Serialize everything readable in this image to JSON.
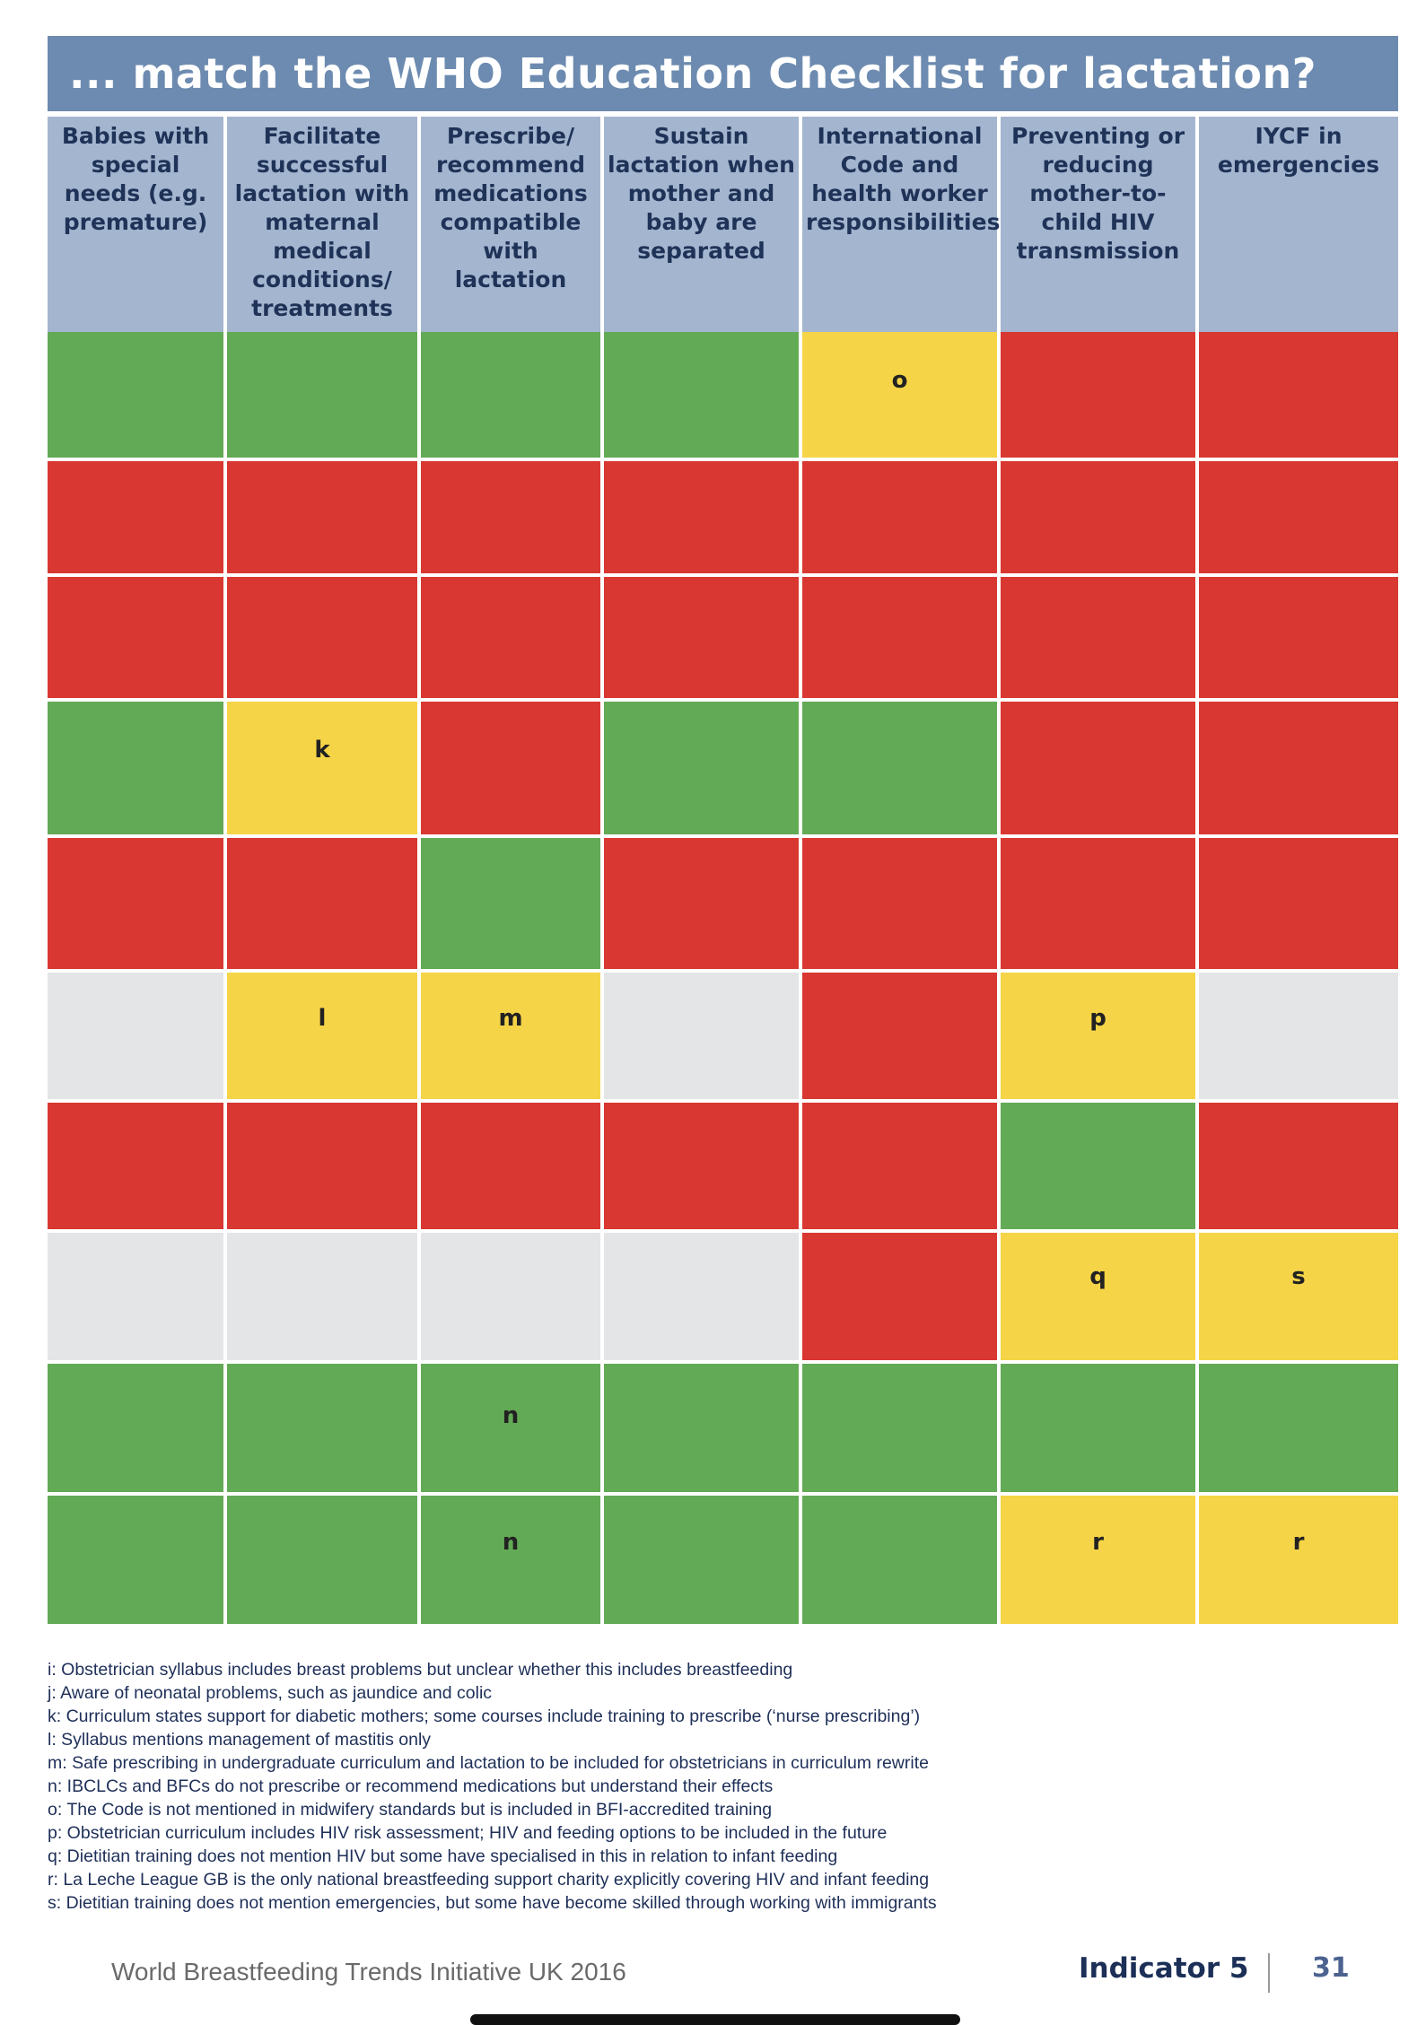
{
  "title": "... match the WHO Education Checklist for lactation?",
  "columns": [
    "Babies with special needs (e.g. premature)",
    "Facilitate successful lactation with maternal medical conditions/ treatments",
    "Prescribe/ recommend medications compatible with lactation",
    "Sustain lactation when mother and baby are separated",
    "International Code and health worker responsibilities",
    "Preventing or reducing mother-to-child HIV transmission",
    "IYCF in emergencies"
  ],
  "colors": {
    "green": "#62aa55",
    "red": "#d83831",
    "yellow": "#f6d447",
    "grey": "#e4e5e7",
    "header": "#a4b5cf",
    "title_bar": "#6d8bb0"
  },
  "rows": [
    [
      {
        "status": "green",
        "note": ""
      },
      {
        "status": "green",
        "note": ""
      },
      {
        "status": "green",
        "note": ""
      },
      {
        "status": "green",
        "note": ""
      },
      {
        "status": "yellow",
        "note": "o"
      },
      {
        "status": "red",
        "note": ""
      },
      {
        "status": "red",
        "note": ""
      }
    ],
    [
      {
        "status": "red",
        "note": ""
      },
      {
        "status": "red",
        "note": ""
      },
      {
        "status": "red",
        "note": ""
      },
      {
        "status": "red",
        "note": ""
      },
      {
        "status": "red",
        "note": ""
      },
      {
        "status": "red",
        "note": ""
      },
      {
        "status": "red",
        "note": ""
      }
    ],
    [
      {
        "status": "red",
        "note": ""
      },
      {
        "status": "red",
        "note": ""
      },
      {
        "status": "red",
        "note": ""
      },
      {
        "status": "red",
        "note": ""
      },
      {
        "status": "red",
        "note": ""
      },
      {
        "status": "red",
        "note": ""
      },
      {
        "status": "red",
        "note": ""
      }
    ],
    [
      {
        "status": "green",
        "note": ""
      },
      {
        "status": "yellow",
        "note": "k"
      },
      {
        "status": "red",
        "note": ""
      },
      {
        "status": "green",
        "note": ""
      },
      {
        "status": "green",
        "note": ""
      },
      {
        "status": "red",
        "note": ""
      },
      {
        "status": "red",
        "note": ""
      }
    ],
    [
      {
        "status": "red",
        "note": ""
      },
      {
        "status": "red",
        "note": ""
      },
      {
        "status": "green",
        "note": ""
      },
      {
        "status": "red",
        "note": ""
      },
      {
        "status": "red",
        "note": ""
      },
      {
        "status": "red",
        "note": ""
      },
      {
        "status": "red",
        "note": ""
      }
    ],
    [
      {
        "status": "grey",
        "note": ""
      },
      {
        "status": "yellow",
        "note": "l"
      },
      {
        "status": "yellow",
        "note": "m"
      },
      {
        "status": "grey",
        "note": ""
      },
      {
        "status": "red",
        "note": ""
      },
      {
        "status": "yellow",
        "note": "p"
      },
      {
        "status": "grey",
        "note": ""
      }
    ],
    [
      {
        "status": "red",
        "note": ""
      },
      {
        "status": "red",
        "note": ""
      },
      {
        "status": "red",
        "note": ""
      },
      {
        "status": "red",
        "note": ""
      },
      {
        "status": "red",
        "note": ""
      },
      {
        "status": "green",
        "note": ""
      },
      {
        "status": "red",
        "note": ""
      }
    ],
    [
      {
        "status": "grey",
        "note": ""
      },
      {
        "status": "grey",
        "note": ""
      },
      {
        "status": "grey",
        "note": ""
      },
      {
        "status": "grey",
        "note": ""
      },
      {
        "status": "red",
        "note": ""
      },
      {
        "status": "yellow",
        "note": "q"
      },
      {
        "status": "yellow",
        "note": "s"
      }
    ],
    [
      {
        "status": "green",
        "note": ""
      },
      {
        "status": "green",
        "note": ""
      },
      {
        "status": "green",
        "note": "n"
      },
      {
        "status": "green",
        "note": ""
      },
      {
        "status": "green",
        "note": ""
      },
      {
        "status": "green",
        "note": ""
      },
      {
        "status": "green",
        "note": ""
      }
    ],
    [
      {
        "status": "green",
        "note": ""
      },
      {
        "status": "green",
        "note": ""
      },
      {
        "status": "green",
        "note": "n"
      },
      {
        "status": "green",
        "note": ""
      },
      {
        "status": "green",
        "note": ""
      },
      {
        "status": "yellow",
        "note": "r"
      },
      {
        "status": "yellow",
        "note": "r"
      }
    ]
  ],
  "footnotes": [
    "i:  Obstetrician syllabus includes breast problems but unclear whether this includes breastfeeding",
    "j:  Aware of neonatal problems, such as jaundice and colic",
    "k:  Curriculum states support for diabetic mothers; some courses include training to prescribe (‘nurse prescribing’)",
    "l:  Syllabus mentions management of mastitis only",
    "m:  Safe prescribing in undergraduate curriculum and lactation to be included for obstetricians in curriculum rewrite",
    "n:  IBCLCs and BFCs do not prescribe or recommend medications but understand their effects",
    "o:  The Code is not mentioned in midwifery standards but is included in BFI-accredited training",
    "p:  Obstetrician curriculum includes HIV risk assessment; HIV and feeding options to be included in the future",
    "q:  Dietitian training does not mention HIV but some have specialised in this in relation to infant feeding",
    "r:  La Leche League GB is the only national breastfeeding support charity explicitly covering HIV and infant feeding",
    "s:  Dietitian training does not mention emergencies, but some have become skilled through working with immigrants"
  ],
  "footer": {
    "publication": "World Breastfeeding Trends Initiative UK 2016",
    "indicator": "Indicator 5",
    "page_number": "31"
  }
}
